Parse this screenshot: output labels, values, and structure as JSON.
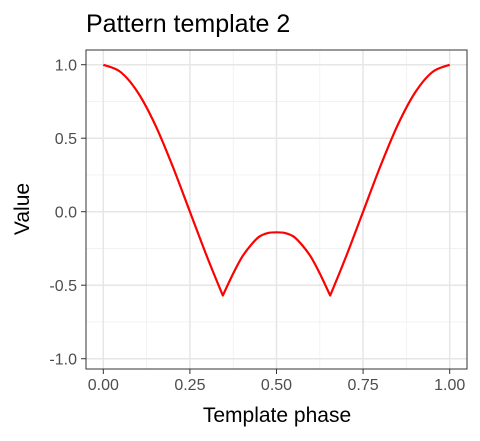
{
  "chart_data": {
    "type": "line",
    "title": "Pattern template 2",
    "xlabel": "Template phase",
    "ylabel": "Value",
    "xlim": [
      -0.05,
      1.05
    ],
    "ylim": [
      -1.07,
      1.1
    ],
    "xticks": [
      0.0,
      0.25,
      0.5,
      0.75,
      1.0
    ],
    "xtick_labels": [
      "0.00",
      "0.25",
      "0.50",
      "0.75",
      "1.00"
    ],
    "yticks": [
      -1.0,
      -0.5,
      0.0,
      0.5,
      1.0
    ],
    "ytick_labels": [
      "-1.0",
      "-0.5",
      "0.0",
      "0.5",
      "1.0"
    ],
    "grid": true,
    "legend": "none",
    "series": [
      {
        "color": "#ff0000",
        "x": [
          0.0,
          0.05,
          0.1,
          0.15,
          0.2,
          0.25,
          0.3,
          0.345,
          0.375,
          0.4,
          0.425,
          0.45,
          0.475,
          0.5,
          0.525,
          0.55,
          0.575,
          0.6,
          0.625,
          0.655,
          0.7,
          0.75,
          0.8,
          0.85,
          0.9,
          0.95,
          1.0
        ],
        "y": [
          1.0,
          0.95,
          0.81,
          0.59,
          0.31,
          0.0,
          -0.31,
          -0.57,
          -0.42,
          -0.31,
          -0.23,
          -0.17,
          -0.145,
          -0.14,
          -0.145,
          -0.17,
          -0.23,
          -0.31,
          -0.42,
          -0.57,
          -0.31,
          0.0,
          0.31,
          0.59,
          0.81,
          0.95,
          1.0
        ]
      }
    ]
  }
}
